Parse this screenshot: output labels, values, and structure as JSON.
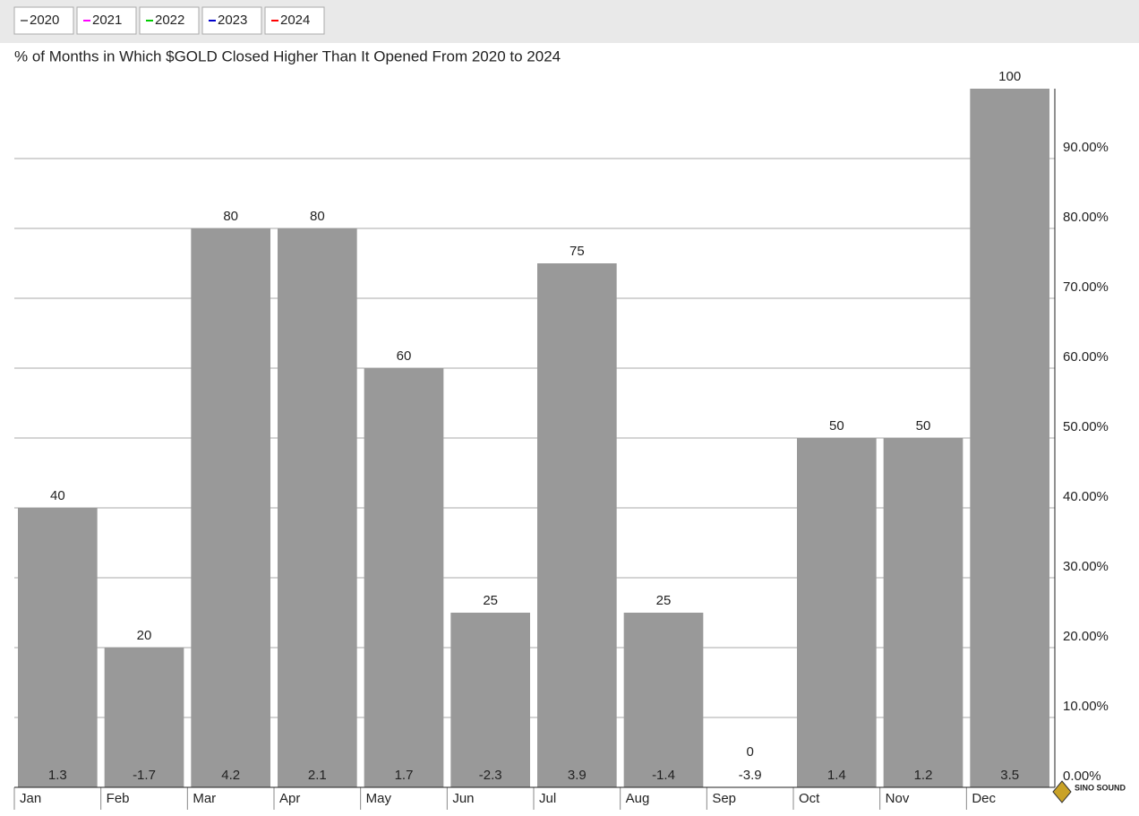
{
  "chart_data": {
    "type": "bar",
    "title": "% of Months in Which $GOLD Closed Higher Than It Opened From 2020 to 2024",
    "legend": [
      {
        "name": "2020",
        "color": "#777777"
      },
      {
        "name": "2021",
        "color": "#ff00ff"
      },
      {
        "name": "2022",
        "color": "#00cc00"
      },
      {
        "name": "2023",
        "color": "#0000cc"
      },
      {
        "name": "2024",
        "color": "#ff0000"
      }
    ],
    "categories": [
      "Jan",
      "Feb",
      "Mar",
      "Apr",
      "May",
      "Jun",
      "Jul",
      "Aug",
      "Sep",
      "Oct",
      "Nov",
      "Dec"
    ],
    "values": [
      40,
      20,
      80,
      80,
      60,
      25,
      75,
      25,
      0,
      50,
      50,
      100
    ],
    "secondary_values": [
      1.3,
      -1.7,
      4.2,
      2.1,
      1.7,
      -2.3,
      3.9,
      -1.4,
      -3.9,
      1.4,
      1.2,
      3.5
    ],
    "color": "#999999",
    "ylim": [
      0,
      100
    ],
    "yticks": [
      {
        "value": 0,
        "label": "0.00%"
      },
      {
        "value": 10,
        "label": "10.00%"
      },
      {
        "value": 20,
        "label": "20.00%"
      },
      {
        "value": 30,
        "label": "30.00%"
      },
      {
        "value": 40,
        "label": "40.00%"
      },
      {
        "value": 50,
        "label": "50.00%"
      },
      {
        "value": 60,
        "label": "60.00%"
      },
      {
        "value": 70,
        "label": "70.00%"
      },
      {
        "value": 80,
        "label": "80.00%"
      },
      {
        "value": 90,
        "label": "90.00%"
      }
    ],
    "grid": true,
    "watermark": "SINO SOUND"
  }
}
